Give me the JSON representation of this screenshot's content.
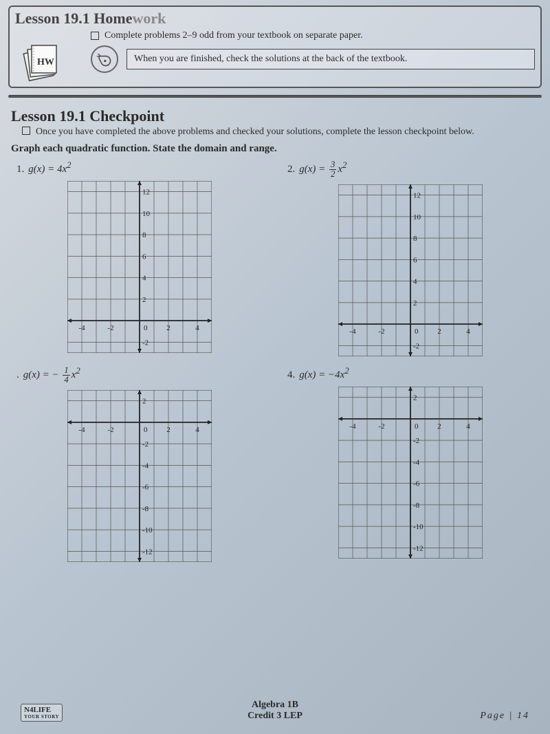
{
  "header": {
    "title_prefix": "Lesson 19.1 Home",
    "title_faded": "work",
    "hw_label": "HW",
    "task_text": "Complete problems 2–9 odd from your textbook on separate paper.",
    "finish_text": "When you are finished, check the solutions at the back of the textbook."
  },
  "checkpoint": {
    "title": "Lesson 19.1 Checkpoint",
    "desc": "Once you have completed the above problems and checked your solutions, complete the lesson checkpoint below.",
    "instruction": "Graph each quadratic function.  State the domain and range."
  },
  "problems": [
    {
      "num": "1.",
      "fn_prefix": "g(x) = 4x",
      "exp": "2",
      "graph_type": "up"
    },
    {
      "num": "2.",
      "fn_prefix": "g(x) = ",
      "frac_top": "3",
      "frac_bot": "2",
      "fn_suffix": "x",
      "exp": "2",
      "graph_type": "up"
    },
    {
      "num": ".",
      "fn_prefix": "g(x) = − ",
      "frac_top": "1",
      "frac_bot": "4",
      "fn_suffix": "x",
      "exp": "2",
      "graph_type": "down"
    },
    {
      "num": "4.",
      "fn_prefix": "g(x) = −4x",
      "exp": "2",
      "graph_type": "down"
    }
  ],
  "graph": {
    "x_ticks": [
      "-4",
      "-2",
      "0",
      "2",
      "4"
    ],
    "y_ticks_up": [
      "12",
      "10",
      "8",
      "6",
      "4",
      "2",
      "-2"
    ],
    "y_ticks_down": [
      "2",
      "-2",
      "-4",
      "-6",
      "-8",
      "-10",
      "-12"
    ],
    "grid_color": "#555",
    "axis_color": "#222",
    "label_color": "#222",
    "label_fontsize": 11,
    "arrow_size": 6
  },
  "footer": {
    "logo_main": "N4LIFE",
    "logo_sub": "YOUR STORY",
    "center_line1": "Algebra 1B",
    "center_line2": "Credit 3 LEP",
    "page": "Page | 14"
  },
  "colors": {
    "text": "#2a2a2a",
    "border": "#555"
  }
}
